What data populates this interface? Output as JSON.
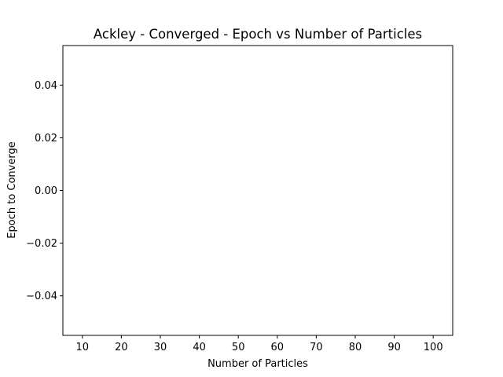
{
  "chart_data": {
    "type": "scatter",
    "title": "Ackley - Converged - Epoch vs Number of Particles",
    "xlabel": "Number of Particles",
    "ylabel": "Epoch to Converge",
    "xlim": [
      5,
      105
    ],
    "ylim": [
      -0.055,
      0.055
    ],
    "x_ticks": [
      10,
      20,
      30,
      40,
      50,
      60,
      70,
      80,
      90,
      100
    ],
    "y_ticks": [
      -0.04,
      -0.02,
      0.0,
      0.02,
      0.04
    ],
    "x_tick_labels": [
      "10",
      "20",
      "30",
      "40",
      "50",
      "60",
      "70",
      "80",
      "90",
      "100"
    ],
    "y_tick_labels": [
      "−0.04",
      "−0.02",
      "0.00",
      "0.02",
      "0.04"
    ],
    "series": [
      {
        "x": [],
        "y": [],
        "color": "#1f77b4"
      }
    ],
    "grid": false,
    "legend": null
  }
}
